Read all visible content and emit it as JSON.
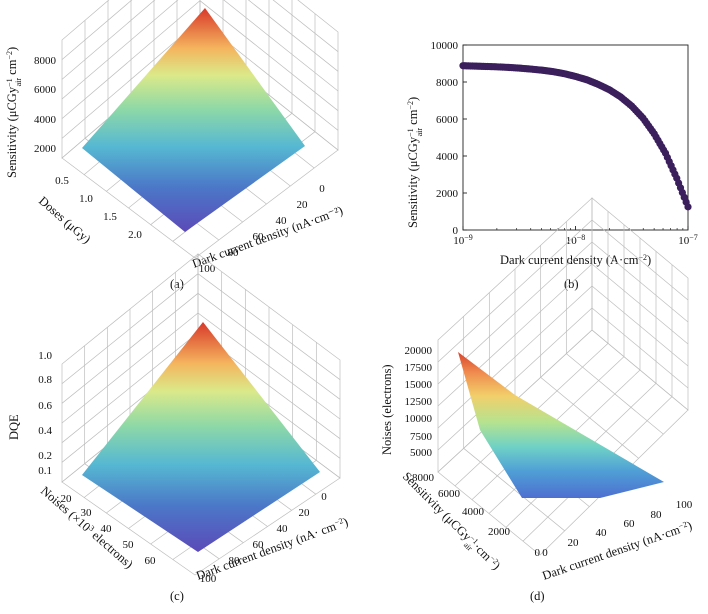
{
  "figure": {
    "panels": [
      "(a)",
      "(b)",
      "(c)",
      "(d)"
    ]
  },
  "chart_data": [
    {
      "id": "a",
      "type": "surface3d",
      "panel_label": "(a)",
      "zlabel_prefix": "Sensitivity (μCGy",
      "zlabel_sub": "air",
      "zlabel_suffix": " cm",
      "zlabel_sup": "−1",
      "zlabel_sup2": "−2",
      "zlabel_close": ")",
      "ylabel": "Doses (μGy)",
      "xlabel": "Dark current density (nA·cm⁻²)",
      "zticks": [
        "2000",
        "4000",
        "6000",
        "8000"
      ],
      "yticks": [
        "0.5",
        "1.0",
        "1.5",
        "2.0"
      ],
      "xticks": [
        "0",
        "20",
        "40",
        "60",
        "80",
        "100"
      ],
      "z_range": [
        1200,
        8900
      ],
      "x_range": [
        0,
        100
      ],
      "y_range": [
        0.4,
        2.4
      ],
      "corner_values": {
        "x0_ylow": 8900,
        "x0_yhigh": 2400,
        "x100_ylow": 1300,
        "x100_yhigh": 1200
      },
      "colormap": "rainbow (violet–blue–green–yellow–red)"
    },
    {
      "id": "b",
      "type": "scatter",
      "panel_label": "(b)",
      "title": "",
      "ylabel": "Sensitivity (μCGy⁻¹air·cm⁻²)",
      "ylabel_prefix": "Sensitivity (μCGy",
      "ylabel_sub": "air",
      "ylabel_sup": "−1",
      "ylabel_suffix": " cm",
      "ylabel_sup2": "−2",
      "ylabel_close": ")",
      "xlabel": "Dark current density (A·cm⁻²)",
      "xlabel_text": "Dark current density (A·cm",
      "xlabel_sup": "−2",
      "xlabel_close": ")",
      "xscale": "log",
      "xlim": [
        1e-09,
        1e-07
      ],
      "ylim": [
        0,
        10000
      ],
      "yticks": [
        "0",
        "2000",
        "4000",
        "6000",
        "8000",
        "10000"
      ],
      "xticks_base": [
        "10",
        "10",
        "10"
      ],
      "xticks_exp": [
        "−9",
        "−8",
        "−7"
      ],
      "marker_color": "#3b1f5c",
      "x": [
        1e-09,
        1.26e-09,
        1.58e-09,
        2e-09,
        2.51e-09,
        3.16e-09,
        3.98e-09,
        5.01e-09,
        6.31e-09,
        7.94e-09,
        1e-08,
        1.26e-08,
        1.58e-08,
        2e-08,
        2.51e-08,
        3.16e-08,
        3.98e-08,
        5.01e-08,
        6.31e-08,
        7.94e-08,
        1e-07
      ],
      "y": [
        8880,
        8860,
        8840,
        8820,
        8790,
        8750,
        8700,
        8640,
        8560,
        8450,
        8300,
        8120,
        7880,
        7580,
        7200,
        6700,
        6050,
        5200,
        4150,
        2800,
        1250
      ]
    },
    {
      "id": "c",
      "type": "surface3d",
      "panel_label": "(c)",
      "zlabel": "DQE",
      "ylabel": "Noises (×10³ electrons)",
      "ylabel_prefix": "Noises (×10",
      "ylabel_sup": "3",
      "ylabel_suffix": " electrons)",
      "xlabel": "Dark current density (nA· cm⁻²)",
      "xlabel_text": "Dark current density (nA· cm",
      "xlabel_sup": "−2",
      "xlabel_close": ")",
      "zticks": [
        "0.2",
        "0.4",
        "0.6",
        "0.8",
        "1.0"
      ],
      "zticks_extra": [
        "0.1"
      ],
      "yticks": [
        "20",
        "30",
        "40",
        "50",
        "60"
      ],
      "xticks": [
        "0",
        "20",
        "40",
        "60",
        "80",
        "100"
      ],
      "z_range": [
        0.05,
        1.0
      ],
      "colormap": "rainbow (violet–blue–green–yellow–red)"
    },
    {
      "id": "d",
      "type": "surface3d",
      "panel_label": "(d)",
      "zlabel": "Noises (electrons)",
      "ylabel_prefix": "Sensitivity (μCGy",
      "ylabel_sub": "air",
      "ylabel_sup": "−1",
      "ylabel_suffix": "·cm",
      "ylabel_sup2": "−2",
      "ylabel_close": ")",
      "xlabel_text": "Dark current density (nA·cm",
      "xlabel_sup": "−2",
      "xlabel_close": ")",
      "zticks": [
        "5000",
        "7500",
        "10000",
        "12500",
        "15000",
        "17500",
        "20000"
      ],
      "yticks": [
        "0",
        "2000",
        "4000",
        "6000",
        "8000"
      ],
      "xticks": [
        "0",
        "20",
        "40",
        "60",
        "80",
        "100"
      ],
      "z_range": [
        2500,
        20000
      ],
      "colormap": "rainbow (violet–blue–green–yellow–red)"
    }
  ]
}
